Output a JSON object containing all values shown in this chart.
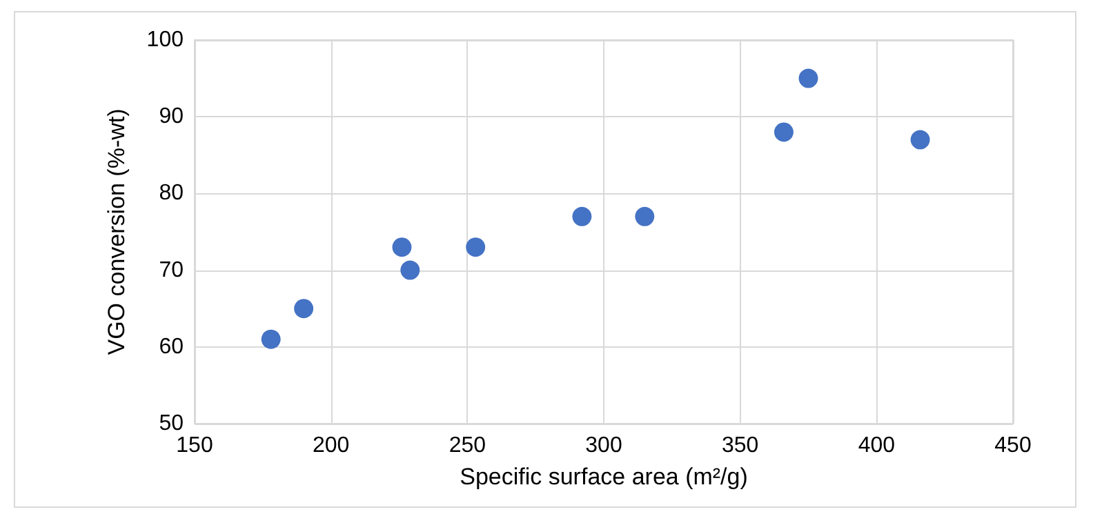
{
  "chart_data": {
    "type": "scatter",
    "xlabel": "Specific surface area (m²/g)",
    "ylabel": "VGO conversion (%-wt)",
    "x": [
      178,
      190,
      226,
      229,
      253,
      292,
      315,
      366,
      375,
      416
    ],
    "series": [
      {
        "color": "#4472c4",
        "values": [
          61,
          65,
          73,
          70,
          73,
          77,
          77,
          88,
          95,
          87
        ]
      }
    ],
    "xlim": [
      150,
      450
    ],
    "xticks": [
      150,
      200,
      250,
      300,
      350,
      400,
      450
    ],
    "ylim": [
      50,
      100
    ],
    "yticks": [
      50,
      60,
      70,
      80,
      90,
      100
    ],
    "grid": true,
    "marker": "circle"
  }
}
